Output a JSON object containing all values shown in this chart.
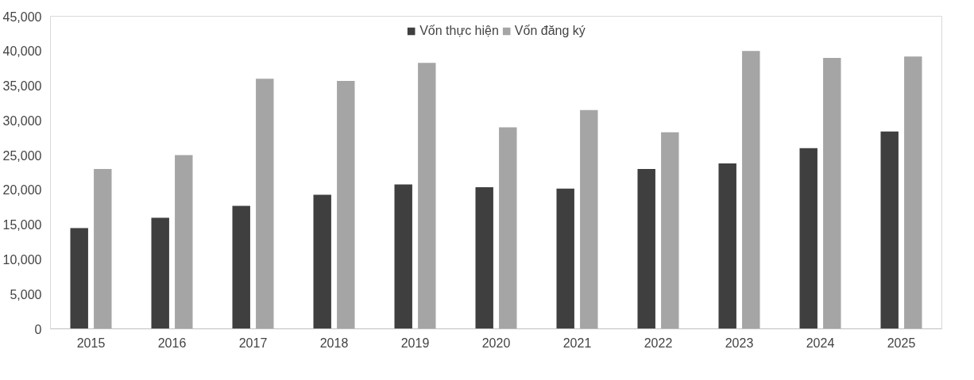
{
  "chart_data": {
    "type": "bar",
    "categories": [
      "2015",
      "2016",
      "2017",
      "2018",
      "2019",
      "2020",
      "2021",
      "2022",
      "2023",
      "2024",
      "2025"
    ],
    "series": [
      {
        "name": "Vốn thực hiện",
        "color": "#3f3f3f",
        "values": [
          14500,
          16000,
          17700,
          19300,
          20800,
          20400,
          20200,
          23000,
          23800,
          26000,
          28400
        ]
      },
      {
        "name": "Vốn đăng ký",
        "color": "#a5a5a5",
        "values": [
          23000,
          25000,
          36000,
          35700,
          38300,
          29000,
          31500,
          28300,
          40000,
          39000,
          39200
        ]
      }
    ],
    "ylim": [
      0,
      45000
    ],
    "yticks": [
      {
        "value": 0,
        "label": "0"
      },
      {
        "value": 5000,
        "label": "5,000"
      },
      {
        "value": 10000,
        "label": "10,000"
      },
      {
        "value": 15000,
        "label": "15,000"
      },
      {
        "value": 20000,
        "label": "20,000"
      },
      {
        "value": 25000,
        "label": "25,000"
      },
      {
        "value": 30000,
        "label": "30,000"
      },
      {
        "value": 35000,
        "label": "35,000"
      },
      {
        "value": 40000,
        "label": "40,000"
      },
      {
        "value": 45000,
        "label": "45,000"
      }
    ],
    "grid": false,
    "legend": "top"
  }
}
